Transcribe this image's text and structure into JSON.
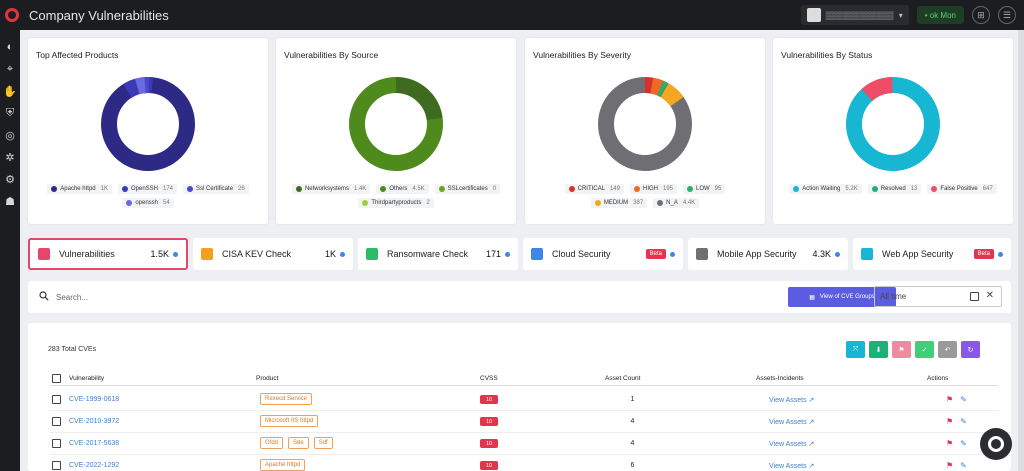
{
  "app": {
    "title": "Company Vulnerabilities"
  },
  "topbar": {
    "status_label": "• ok Mon"
  },
  "charts": [
    {
      "title": "Top Affected Products",
      "legend": [
        {
          "label": "Apache httpd",
          "count": "1K",
          "color": "#2d2a85"
        },
        {
          "label": "OpenSSH",
          "count": "174",
          "color": "#3c39b5"
        },
        {
          "label": "Ssl Certificate",
          "count": "26",
          "color": "#4b49cc"
        },
        {
          "label": "openssh",
          "count": "54",
          "color": "#6a6be0"
        }
      ]
    },
    {
      "title": "Vulnerabilities By Source",
      "legend": [
        {
          "label": "Networksystems",
          "count": "1.4K",
          "color": "#3e6b1f"
        },
        {
          "label": "Others",
          "count": "4.5K",
          "color": "#4f8a1c"
        },
        {
          "label": "SSLcertificates",
          "count": "0",
          "color": "#6aa422"
        },
        {
          "label": "Thirdpartyproducts",
          "count": "2",
          "color": "#9bd13a"
        }
      ]
    },
    {
      "title": "Vulnerabilities By Severity",
      "legend": [
        {
          "label": "CRITICAL",
          "count": "149",
          "color": "#d9302f"
        },
        {
          "label": "HIGH",
          "count": "195",
          "color": "#ef6a26"
        },
        {
          "label": "LOW",
          "count": "95",
          "color": "#23b36b"
        },
        {
          "label": "MEDIUM",
          "count": "387",
          "color": "#f5a623"
        },
        {
          "label": "N_A",
          "count": "4.4K",
          "color": "#6f6f73"
        }
      ]
    },
    {
      "title": "Vulnerabilities By Status",
      "legend": [
        {
          "label": "Action Waiting",
          "count": "5.2K",
          "color": "#17b6d3"
        },
        {
          "label": "Resolved",
          "count": "13",
          "color": "#1fb078"
        },
        {
          "label": "False Positive",
          "count": "647",
          "color": "#ef4c69"
        }
      ]
    }
  ],
  "tabs": [
    {
      "label": "Vulnerabilities",
      "count": "1.5K",
      "color": "#e8456b",
      "active": true
    },
    {
      "label": "CISA KEV Check",
      "count": "1K",
      "color": "#f2a01e"
    },
    {
      "label": "Ransomware Check",
      "count": "171",
      "color": "#2dbb67"
    },
    {
      "label": "Cloud Security",
      "badge": "Beta",
      "color": "#3f86e6"
    },
    {
      "label": "Mobile App Security",
      "count": "4.3K",
      "color": "#707070"
    },
    {
      "label": "Web App Security",
      "badge": "Beta",
      "color": "#17b6d3"
    }
  ],
  "search": {
    "placeholder": "Search...",
    "cve_groups_label": "View of CVE Groups",
    "time_value": "All time"
  },
  "table": {
    "total_label": "283 Total CVEs",
    "columns": [
      "Vulnerability",
      "Product",
      "CVSS",
      "Asset Count",
      "Assets-Incidents",
      "Actions"
    ],
    "rows": [
      {
        "cve": "CVE-1999-0618",
        "products": [
          "Rexecd Service"
        ],
        "cvss": "10",
        "assets": "1",
        "link": "View Assets ↗"
      },
      {
        "cve": "CVE-2010-3972",
        "products": [
          "Microsoft IIS httpd"
        ],
        "cvss": "10",
        "assets": "4",
        "link": "View Assets ↗"
      },
      {
        "cve": "CVE-2017-5638",
        "products": [
          "Gfdd",
          "Sde",
          "Sdf"
        ],
        "cvss": "10",
        "assets": "4",
        "link": "View Assets ↗"
      },
      {
        "cve": "CVE-2022-1292",
        "products": [
          "Apache httpd"
        ],
        "cvss": "10",
        "assets": "6",
        "link": "View Assets ↗"
      }
    ]
  },
  "toolbar_actions": [
    {
      "icon": "expand-icon",
      "glyph": "⤧",
      "color": "#17b6d3"
    },
    {
      "icon": "download-icon",
      "glyph": "⬇",
      "color": "#1fb078"
    },
    {
      "icon": "flag-icon",
      "glyph": "⚑",
      "color": "#f08aa0"
    },
    {
      "icon": "check-icon",
      "glyph": "✓",
      "color": "#3fcf78"
    },
    {
      "icon": "undo-icon",
      "glyph": "↶",
      "color": "#9a9a9a"
    },
    {
      "icon": "refresh-icon",
      "glyph": "↻",
      "color": "#8a58e8"
    }
  ],
  "nav_icons": [
    {
      "icon": "dashboard-icon",
      "glyph": "◐"
    },
    {
      "icon": "scan-icon",
      "glyph": "⌖"
    },
    {
      "icon": "hand-icon",
      "glyph": "✋"
    },
    {
      "icon": "shield-icon",
      "glyph": "⛨"
    },
    {
      "icon": "fingerprint-icon",
      "glyph": "◎"
    },
    {
      "icon": "bug-icon",
      "glyph": "✲"
    },
    {
      "icon": "network-icon",
      "glyph": "⚙"
    },
    {
      "icon": "user-shield-icon",
      "glyph": "☗"
    }
  ]
}
